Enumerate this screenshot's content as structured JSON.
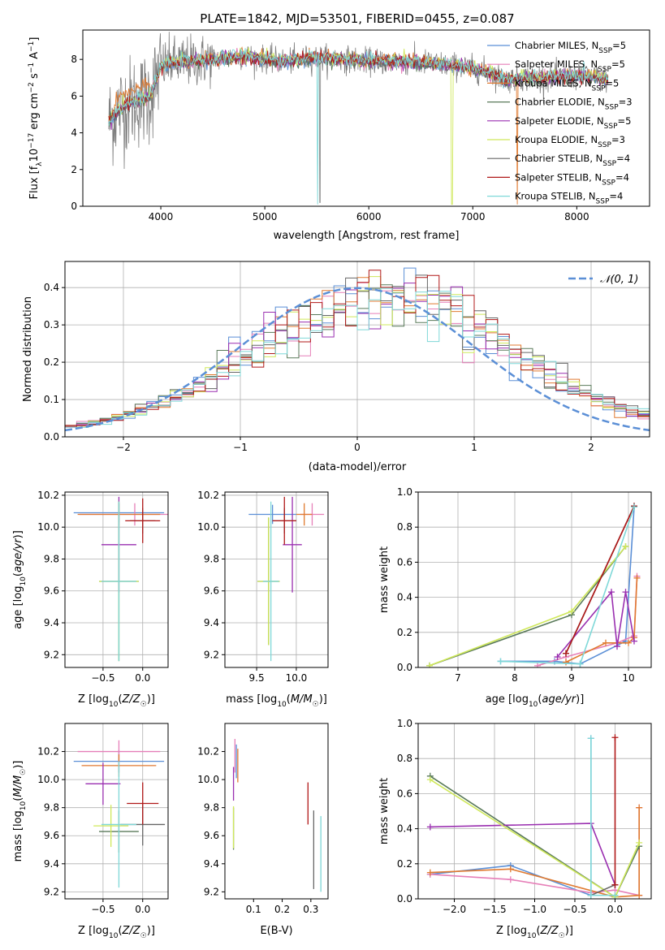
{
  "title": "PLATE=1842, MJD=53501, FIBERID=0455, z=0.087",
  "colors": {
    "chabrier_miles": "#5b8fd6",
    "salpeter_miles": "#e67fb8",
    "kroupa_miles": "#e07a30",
    "chabrier_elodie": "#5a7a5a",
    "salpeter_elodie": "#9a2fb0",
    "kroupa_elodie": "#cfe85a",
    "chabrier_stelib": "#666666",
    "salpeter_stelib": "#b01818",
    "kroupa_stelib": "#7fd8d8",
    "data": "#808080",
    "grid": "#b0b0b0",
    "gauss": "#5b8fd6"
  },
  "chart_data": [
    {
      "id": "spectrum",
      "type": "line",
      "title": "PLATE=1842, MJD=53501, FIBERID=0455, z=0.087",
      "xlabel": "wavelength [Angstrom, rest frame]",
      "ylabel": "Flux [f_λ 10^-17 erg cm^-2 s^-1 A^-1]",
      "xlim": [
        3250,
        8700
      ],
      "ylim": [
        0,
        9.6
      ],
      "xticks": [
        4000,
        5000,
        6000,
        7000,
        8000
      ],
      "yticks": [
        0,
        2,
        4,
        6,
        8
      ],
      "grid": false,
      "legend_position": "top-right",
      "legend": [
        {
          "label": "Chabrier MILES, N",
          "sub": "SSP",
          "val": "=5",
          "color_key": "chabrier_miles"
        },
        {
          "label": "Salpeter MILES, N",
          "sub": "SSP",
          "val": "=5",
          "color_key": "salpeter_miles"
        },
        {
          "label": "Kroupa MILES, N",
          "sub": "SSP",
          "val": "=5",
          "color_key": "kroupa_miles"
        },
        {
          "label": "Chabrier ELODIE, N",
          "sub": "SSP",
          "val": "=3",
          "color_key": "chabrier_elodie"
        },
        {
          "label": "Salpeter ELODIE, N",
          "sub": "SSP",
          "val": "=5",
          "color_key": "salpeter_elodie"
        },
        {
          "label": "Kroupa ELODIE, N",
          "sub": "SSP",
          "val": "=3",
          "color_key": "kroupa_elodie"
        },
        {
          "label": "Chabrier STELIB, N",
          "sub": "SSP",
          "val": "=4",
          "color_key": "chabrier_stelib"
        },
        {
          "label": "Salpeter STELIB, N",
          "sub": "SSP",
          "val": "=4",
          "color_key": "salpeter_stelib"
        },
        {
          "label": "Kroupa STELIB, N",
          "sub": "SSP",
          "val": "=4",
          "color_key": "kroupa_stelib"
        }
      ],
      "continuum": {
        "wavelength": [
          3500,
          3600,
          3700,
          3800,
          3900,
          4000,
          4100,
          4300,
          4500,
          4800,
          5000,
          5200,
          5500,
          5800,
          6000,
          6300,
          6600,
          6900,
          7100,
          7200,
          7300,
          7500,
          7700,
          8000,
          8200,
          8300
        ],
        "flux": [
          4.6,
          5.3,
          5.6,
          5.8,
          6.0,
          7.6,
          7.8,
          7.9,
          8.0,
          8.2,
          8.0,
          7.9,
          8.1,
          8.0,
          7.9,
          7.9,
          7.8,
          7.6,
          7.4,
          7.2,
          6.9,
          7.0,
          7.0,
          7.1,
          7.0,
          6.9
        ]
      }
    },
    {
      "id": "residuals",
      "type": "line",
      "xlabel": "(data-model)/error",
      "ylabel": "Normed distribution",
      "xlim": [
        -2.5,
        2.5
      ],
      "ylim": [
        0,
        0.47
      ],
      "xticks": [
        -2,
        -1,
        0,
        1,
        2
      ],
      "yticks": [
        0.0,
        0.1,
        0.2,
        0.3,
        0.4
      ],
      "grid": true,
      "legend_position": "top-right",
      "gauss_label": "𝒩(0, 1)",
      "gauss": {
        "mean": 0,
        "sigma": 1
      }
    },
    {
      "id": "z_vs_age",
      "type": "scatter",
      "xlabel": "Z [log10(Z/Z☉)]",
      "ylabel": "age [log10(age/yr)]",
      "xlim": [
        -0.98,
        0.32
      ],
      "ylim": [
        9.12,
        10.22
      ],
      "xticks": [
        -0.5,
        0.0
      ],
      "yticks": [
        9.2,
        9.4,
        9.6,
        9.8,
        10.0,
        10.2
      ],
      "grid": true,
      "errorbars": [
        {
          "x": -0.3,
          "xerr": 0.57,
          "y": 10.09,
          "yerr": 0.06,
          "color_key": "chabrier_miles"
        },
        {
          "x": -0.1,
          "xerr": 0.7,
          "y": 10.08,
          "yerr": 0.07,
          "color_key": "salpeter_miles"
        },
        {
          "x": -0.3,
          "xerr": 0.52,
          "y": 10.08,
          "yerr": 0.07,
          "color_key": "kroupa_miles"
        },
        {
          "x": -0.3,
          "xerr": 0.25,
          "y": 9.66,
          "yerr": 0.5,
          "color_key": "chabrier_elodie"
        },
        {
          "x": -0.3,
          "xerr": 0.22,
          "y": 9.89,
          "yerr": 0.3,
          "color_key": "salpeter_elodie"
        },
        {
          "x": -0.3,
          "xerr": 0.25,
          "y": 9.66,
          "yerr": 0.5,
          "color_key": "kroupa_elodie"
        },
        {
          "x": 0.0,
          "xerr": 0.16,
          "y": 10.04,
          "yerr": 0.08,
          "color_key": "chabrier_stelib"
        },
        {
          "x": 0.0,
          "xerr": 0.22,
          "y": 10.04,
          "yerr": 0.14,
          "color_key": "salpeter_stelib"
        },
        {
          "x": -0.3,
          "xerr": 0.22,
          "y": 9.66,
          "yerr": 0.5,
          "color_key": "kroupa_stelib"
        }
      ]
    },
    {
      "id": "mass_vs_age",
      "type": "scatter",
      "xlabel": "mass [log10(M/M☉)]",
      "ylabel": "",
      "xlim": [
        9.1,
        10.4
      ],
      "ylim": [
        9.12,
        10.22
      ],
      "xticks": [
        9.5,
        10.0
      ],
      "yticks": [
        9.2,
        9.4,
        9.6,
        9.8,
        10.0,
        10.2
      ],
      "grid": true,
      "errorbars": [
        {
          "x": 9.7,
          "xerr": 0.3,
          "y": 10.08,
          "yerr": 0.06,
          "color_key": "chabrier_miles"
        },
        {
          "x": 10.2,
          "xerr": 0.15,
          "y": 10.08,
          "yerr": 0.07,
          "color_key": "salpeter_miles"
        },
        {
          "x": 10.1,
          "xerr": 0.1,
          "y": 10.08,
          "yerr": 0.07,
          "color_key": "kroupa_miles"
        },
        {
          "x": 9.65,
          "xerr": 0.14,
          "y": 9.66,
          "yerr": 0.4,
          "color_key": "chabrier_elodie"
        },
        {
          "x": 9.95,
          "xerr": 0.12,
          "y": 9.89,
          "yerr": 0.3,
          "color_key": "salpeter_elodie"
        },
        {
          "x": 9.65,
          "xerr": 0.14,
          "y": 9.66,
          "yerr": 0.4,
          "color_key": "kroupa_elodie"
        },
        {
          "x": 9.85,
          "xerr": 0.15,
          "y": 10.04,
          "yerr": 0.08,
          "color_key": "chabrier_stelib"
        },
        {
          "x": 9.85,
          "xerr": 0.15,
          "y": 10.04,
          "yerr": 0.15,
          "color_key": "salpeter_stelib"
        },
        {
          "x": 9.68,
          "xerr": 0.1,
          "y": 9.66,
          "yerr": 0.5,
          "color_key": "kroupa_stelib"
        }
      ]
    },
    {
      "id": "age_weights",
      "type": "line",
      "xlabel": "age [log10(age/yr)]",
      "ylabel": "mass weight",
      "xlim": [
        6.3,
        10.4
      ],
      "ylim": [
        0,
        1.0
      ],
      "xticks": [
        7,
        8,
        9,
        10
      ],
      "yticks": [
        0.0,
        0.2,
        0.4,
        0.6,
        0.8,
        1.0
      ],
      "grid": true,
      "series": [
        {
          "color_key": "chabrier_miles",
          "x": [
            7.75,
            8.7,
            9.15,
            9.95,
            10.1
          ],
          "y": [
            0.035,
            0.035,
            0.02,
            0.15,
            0.915
          ]
        },
        {
          "color_key": "salpeter_miles",
          "x": [
            8.4,
            8.9,
            9.8,
            10.1,
            10.15
          ],
          "y": [
            0.01,
            0.06,
            0.14,
            0.18,
            0.52
          ]
        },
        {
          "color_key": "kroupa_miles",
          "x": [
            8.9,
            9.6,
            10.0,
            10.1,
            10.15
          ],
          "y": [
            0.03,
            0.14,
            0.14,
            0.17,
            0.51
          ]
        },
        {
          "color_key": "chabrier_elodie",
          "x": [
            6.5,
            9.0,
            9.95
          ],
          "y": [
            0.01,
            0.3,
            0.69
          ]
        },
        {
          "color_key": "salpeter_elodie",
          "x": [
            8.75,
            9.7,
            9.8,
            9.95,
            10.1
          ],
          "y": [
            0.06,
            0.43,
            0.12,
            0.43,
            0.15
          ]
        },
        {
          "color_key": "kroupa_elodie",
          "x": [
            6.5,
            9.0,
            9.95
          ],
          "y": [
            0.01,
            0.32,
            0.69
          ]
        },
        {
          "color_key": "chabrier_stelib",
          "x": [
            8.9,
            10.1
          ],
          "y": [
            0.08,
            0.92
          ]
        },
        {
          "color_key": "salpeter_stelib",
          "x": [
            8.9,
            10.1
          ],
          "y": [
            0.08,
            0.92
          ]
        },
        {
          "color_key": "kroupa_stelib",
          "x": [
            7.75,
            9.15,
            10.1
          ],
          "y": [
            0.035,
            0.02,
            0.915
          ]
        }
      ]
    },
    {
      "id": "z_vs_mass",
      "type": "scatter",
      "xlabel": "Z [log10(Z/Z☉)]",
      "ylabel": "mass [log10(M/M☉)]",
      "xlim": [
        -0.98,
        0.32
      ],
      "ylim": [
        9.15,
        10.4
      ],
      "xticks": [
        -0.5,
        0.0
      ],
      "yticks": [
        9.2,
        9.4,
        9.6,
        9.8,
        10.0,
        10.2
      ],
      "grid": true,
      "errorbars": [
        {
          "x": -0.3,
          "xerr": 0.57,
          "y": 10.13,
          "yerr": 0.08,
          "color_key": "chabrier_miles"
        },
        {
          "x": -0.3,
          "xerr": 0.52,
          "y": 10.2,
          "yerr": 0.08,
          "color_key": "salpeter_miles"
        },
        {
          "x": -0.3,
          "xerr": 0.47,
          "y": 10.1,
          "yerr": 0.08,
          "color_key": "kroupa_miles"
        },
        {
          "x": -0.3,
          "xerr": 0.25,
          "y": 9.63,
          "yerr": 0.15,
          "color_key": "chabrier_elodie"
        },
        {
          "x": -0.5,
          "xerr": 0.22,
          "y": 9.97,
          "yerr": 0.15,
          "color_key": "salpeter_elodie"
        },
        {
          "x": -0.4,
          "xerr": 0.22,
          "y": 9.67,
          "yerr": 0.15,
          "color_key": "kroupa_elodie"
        },
        {
          "x": 0.0,
          "xerr": 0.28,
          "y": 9.68,
          "yerr": 0.15,
          "color_key": "chabrier_stelib"
        },
        {
          "x": 0.0,
          "xerr": 0.2,
          "y": 9.83,
          "yerr": 0.15,
          "color_key": "salpeter_stelib"
        },
        {
          "x": -0.3,
          "xerr": 0.22,
          "y": 9.68,
          "yerr": 0.45,
          "color_key": "kroupa_stelib"
        }
      ]
    },
    {
      "id": "ebv_vs_mass",
      "type": "scatter",
      "xlabel": "E(B-V)",
      "ylabel": "",
      "xlim": [
        0.0,
        0.36
      ],
      "ylim": [
        9.15,
        10.4
      ],
      "xticks": [
        0.1,
        0.2,
        0.3
      ],
      "yticks": [
        9.2,
        9.4,
        9.6,
        9.8,
        10.0,
        10.2
      ],
      "grid": false,
      "errorbars": [
        {
          "x": 0.04,
          "y": 10.13,
          "yerr": 0.12,
          "color_key": "chabrier_miles"
        },
        {
          "x": 0.035,
          "y": 10.17,
          "yerr": 0.12,
          "color_key": "salpeter_miles"
        },
        {
          "x": 0.045,
          "y": 10.1,
          "yerr": 0.12,
          "color_key": "kroupa_miles"
        },
        {
          "x": 0.03,
          "y": 9.65,
          "yerr": 0.15,
          "color_key": "chabrier_elodie"
        },
        {
          "x": 0.03,
          "y": 9.97,
          "yerr": 0.12,
          "color_key": "salpeter_elodie"
        },
        {
          "x": 0.03,
          "y": 9.66,
          "yerr": 0.15,
          "color_key": "kroupa_elodie"
        },
        {
          "x": 0.31,
          "y": 9.5,
          "yerr": 0.28,
          "color_key": "chabrier_stelib"
        },
        {
          "x": 0.29,
          "y": 9.83,
          "yerr": 0.15,
          "color_key": "salpeter_stelib"
        },
        {
          "x": 0.335,
          "y": 9.47,
          "yerr": 0.27,
          "color_key": "kroupa_stelib"
        }
      ]
    },
    {
      "id": "z_weights",
      "type": "line",
      "xlabel": "Z [log10(Z/Z☉)]",
      "ylabel": "mass weight",
      "xlim": [
        -2.45,
        0.45
      ],
      "ylim": [
        0,
        1.0
      ],
      "xticks": [
        -2.0,
        -1.5,
        -1.0,
        -0.5,
        0.0
      ],
      "yticks": [
        0.0,
        0.2,
        0.4,
        0.6,
        0.8,
        1.0
      ],
      "grid": true,
      "series": [
        {
          "color_key": "chabrier_miles",
          "x": [
            -2.3,
            -1.3,
            -0.3,
            -0.3
          ],
          "y": [
            0.14,
            0.19,
            0.02,
            0.915
          ]
        },
        {
          "color_key": "salpeter_miles",
          "x": [
            -2.3,
            -1.3,
            -0.3,
            0.0,
            0.3,
            0.3
          ],
          "y": [
            0.14,
            0.11,
            0.035,
            0.05,
            0.02,
            0.52
          ]
        },
        {
          "color_key": "kroupa_miles",
          "x": [
            -2.3,
            -1.3,
            0.0,
            0.3,
            0.3
          ],
          "y": [
            0.15,
            0.17,
            0.01,
            0.02,
            0.52
          ]
        },
        {
          "color_key": "chabrier_elodie",
          "x": [
            -2.3,
            0.0,
            0.3
          ],
          "y": [
            0.7,
            0.01,
            0.3
          ]
        },
        {
          "color_key": "salpeter_elodie",
          "x": [
            -2.3,
            -0.3,
            0.0
          ],
          "y": [
            0.41,
            0.43,
            0.08
          ]
        },
        {
          "color_key": "kroupa_elodie",
          "x": [
            -2.3,
            0.0,
            0.3
          ],
          "y": [
            0.68,
            0.01,
            0.32
          ]
        },
        {
          "color_key": "chabrier_stelib",
          "x": [
            -0.3,
            0.0
          ],
          "y": [
            0.02,
            0.08
          ]
        },
        {
          "color_key": "salpeter_stelib",
          "x": [
            0.0,
            0.0
          ],
          "y": [
            0.08,
            0.92
          ]
        },
        {
          "color_key": "kroupa_stelib",
          "x": [
            -0.3,
            -0.3,
            0.0
          ],
          "y": [
            0.915,
            0.02,
            0.02
          ]
        }
      ]
    }
  ]
}
